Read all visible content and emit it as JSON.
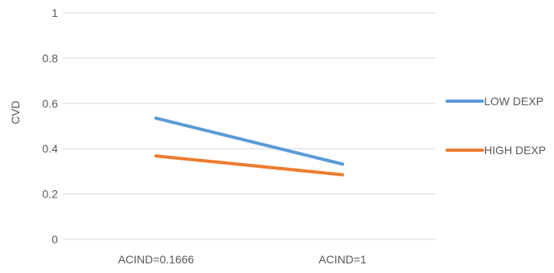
{
  "chart_data": {
    "type": "line",
    "title": "",
    "xlabel": "",
    "ylabel": "CVD",
    "ylim": [
      0,
      1
    ],
    "yticks": [
      "0",
      "0.2",
      "0.4",
      "0.6",
      "0.8",
      "1"
    ],
    "grid": true,
    "legend_position": "right",
    "categories": [
      "ACIND=0.1666",
      "ACIND=1"
    ],
    "series": [
      {
        "name": "LOW DEXP",
        "color": "#5B9BD5",
        "values": [
          0.535,
          0.332
        ]
      },
      {
        "name": "HIGH DEXP",
        "color": "#ED7D31",
        "values": [
          0.368,
          0.285
        ]
      }
    ]
  }
}
